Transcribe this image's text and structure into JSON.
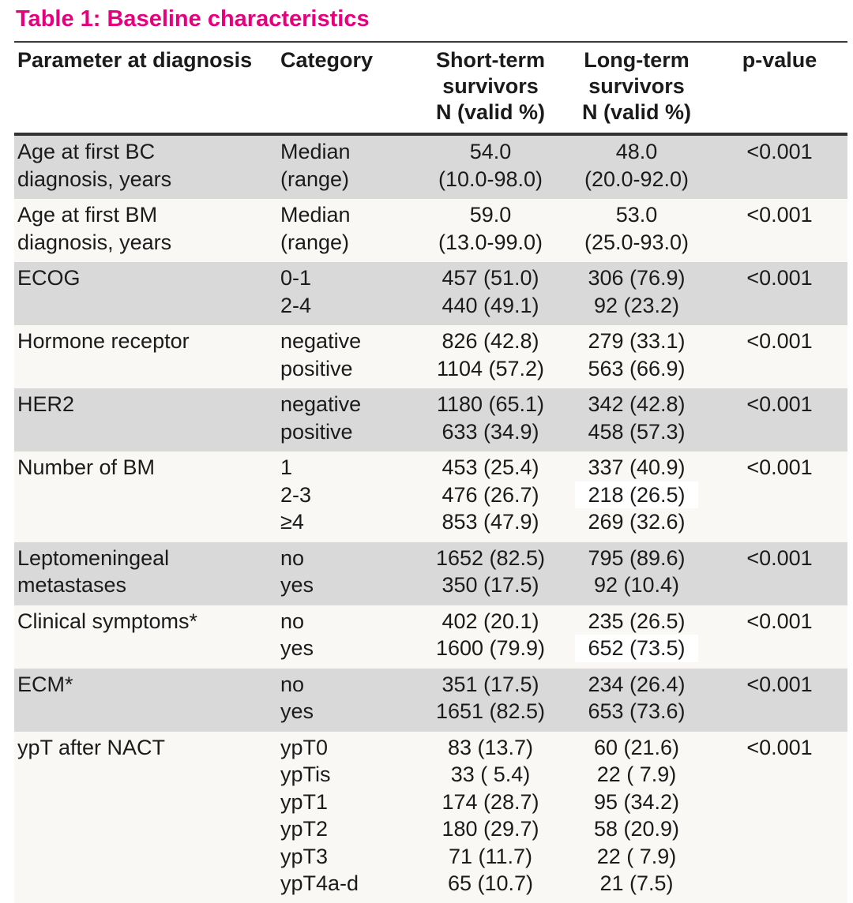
{
  "title": "Table 1: Baseline characteristics",
  "accent_color": "#e6007e",
  "shaded_row_color": "#d9d9d9",
  "columns": {
    "parameter": "Parameter at diagnosis",
    "category": "Category",
    "short_term": "Short-term\nsurvivors\nN (valid %)",
    "long_term": "Long-term\nsurvivors\nN (valid %)",
    "p_value": "p-value"
  },
  "rows": [
    {
      "parameter": "Age at first BC\ndiagnosis, years",
      "shaded": true,
      "p": "<0.001",
      "lines": [
        {
          "category": "Median",
          "short": "54.0",
          "long": "48.0"
        },
        {
          "category": "(range)",
          "short": "(10.0-98.0)",
          "long": "(20.0-92.0)"
        }
      ]
    },
    {
      "parameter": "Age at first BM\ndiagnosis, years",
      "shaded": false,
      "p": "<0.001",
      "lines": [
        {
          "category": "Median",
          "short": "59.0",
          "long": "53.0"
        },
        {
          "category": "(range)",
          "short": "(13.0-99.0)",
          "long": "(25.0-93.0)"
        }
      ]
    },
    {
      "parameter": "ECOG",
      "shaded": true,
      "p": "<0.001",
      "lines": [
        {
          "category": "0-1",
          "short": "457 (51.0)",
          "long": "306 (76.9)"
        },
        {
          "category": "2-4",
          "short": "440 (49.1)",
          "long": "92 (23.2)"
        }
      ]
    },
    {
      "parameter": "Hormone receptor",
      "shaded": false,
      "p": "<0.001",
      "lines": [
        {
          "category": "negative",
          "short": "826 (42.8)",
          "long": "279 (33.1)"
        },
        {
          "category": "positive",
          "short": "1104 (57.2)",
          "long": "563 (66.9)"
        }
      ]
    },
    {
      "parameter": "HER2",
      "shaded": true,
      "p": "<0.001",
      "lines": [
        {
          "category": "negative",
          "short": "1180 (65.1)",
          "long": "342 (42.8)"
        },
        {
          "category": "positive",
          "short": "633 (34.9)",
          "long": "458 (57.3)"
        }
      ]
    },
    {
      "parameter": "Number of BM",
      "shaded": false,
      "p": "<0.001",
      "lines": [
        {
          "category": "1",
          "short": "453 (25.4)",
          "long": "337 (40.9)"
        },
        {
          "category": "2-3",
          "short": "476 (26.7)",
          "long": "218 (26.5)",
          "long_highlight": true
        },
        {
          "category": "≥4",
          "short": "853 (47.9)",
          "long": "269 (32.6)"
        }
      ]
    },
    {
      "parameter": "Leptomeningeal\nmetastases",
      "shaded": true,
      "p": "<0.001",
      "lines": [
        {
          "category": "no",
          "short": "1652 (82.5)",
          "long": "795 (89.6)"
        },
        {
          "category": "yes",
          "short": "350 (17.5)",
          "long": "92 (10.4)"
        }
      ]
    },
    {
      "parameter": "Clinical symptoms*",
      "shaded": false,
      "p": "<0.001",
      "lines": [
        {
          "category": "no",
          "short": "402 (20.1)",
          "long": "235 (26.5)"
        },
        {
          "category": "yes",
          "short": "1600 (79.9)",
          "long": "652 (73.5)",
          "long_highlight": true
        }
      ]
    },
    {
      "parameter": "ECM*",
      "shaded": true,
      "p": "<0.001",
      "lines": [
        {
          "category": "no",
          "short": "351 (17.5)",
          "long": "234 (26.4)"
        },
        {
          "category": "yes",
          "short": "1651 (82.5)",
          "long": "653 (73.6)"
        }
      ]
    },
    {
      "parameter": "ypT after NACT",
      "shaded": false,
      "p": "<0.001",
      "lines": [
        {
          "category": "ypT0",
          "short": "83 (13.7)",
          "long": "60 (21.6)"
        },
        {
          "category": "ypTis",
          "short": "33 ( 5.4)",
          "long": "22 ( 7.9)"
        },
        {
          "category": "ypT1",
          "short": "174 (28.7)",
          "long": "95 (34.2)"
        },
        {
          "category": "ypT2",
          "short": "180 (29.7)",
          "long": "58 (20.9)"
        },
        {
          "category": "ypT3",
          "short": "71 (11.7)",
          "long": "22 ( 7.9)"
        },
        {
          "category": "ypT4a-d",
          "short": "65 (10.7)",
          "long": "21 (7.5)"
        }
      ]
    }
  ]
}
